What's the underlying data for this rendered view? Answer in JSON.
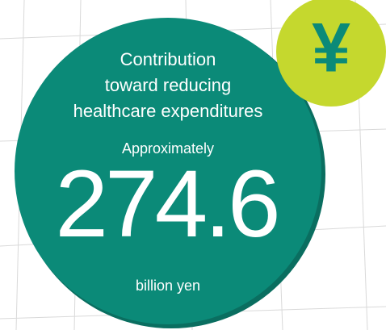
{
  "title_lines": [
    "Contribution",
    "toward reducing",
    "healthcare expenditures"
  ],
  "qualifier": "Approximately",
  "amount": 274.6,
  "unit": "billion yen",
  "icon": "¥"
}
